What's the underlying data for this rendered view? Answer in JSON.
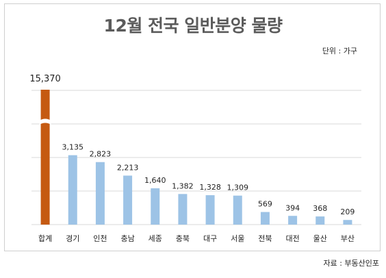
{
  "chart_data": {
    "type": "bar",
    "title": "12월 전국 일반분양 물량",
    "unit_note": "단위 : 가구",
    "source": "자료 : 부동산인포",
    "categories": [
      "합계",
      "경기",
      "인천",
      "충남",
      "세종",
      "충북",
      "대구",
      "서울",
      "전북",
      "대전",
      "울산",
      "부산"
    ],
    "values": [
      15370,
      3135,
      2823,
      2213,
      1640,
      1382,
      1328,
      1309,
      569,
      394,
      368,
      209
    ],
    "value_labels": [
      "15,370",
      "3,135",
      "2,823",
      "2,213",
      "1,640",
      "1,382",
      "1,328",
      "1,309",
      "569",
      "394",
      "368",
      "209"
    ],
    "axis_break": true,
    "grid": true,
    "ylim": [
      0,
      6000
    ],
    "colors": {
      "highlight": "#c55a11",
      "bar": "#9dc3e6",
      "grid": "#d9d9d9"
    }
  }
}
